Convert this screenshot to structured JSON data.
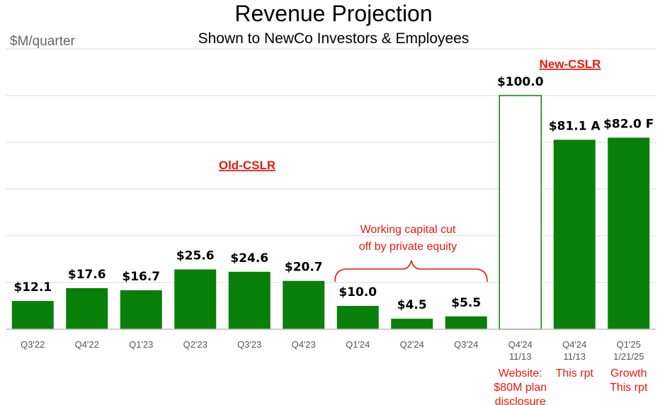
{
  "chart_data": {
    "type": "bar",
    "title": "Revenue Projection",
    "subtitle": "Shown to NewCo Investors & Employees",
    "ylabel": "$M/quarter",
    "ylim": [
      0,
      125
    ],
    "grid": true,
    "bar_color": "#098009",
    "forecast_outline_color": "#098009",
    "bars": [
      {
        "category": "Q3'22",
        "sub": "",
        "value": 12.1,
        "label": "$12.1",
        "style": "solid"
      },
      {
        "category": "Q4'22",
        "sub": "",
        "value": 17.6,
        "label": "$17.6",
        "style": "solid"
      },
      {
        "category": "Q1'23",
        "sub": "",
        "value": 16.7,
        "label": "$16.7",
        "style": "solid"
      },
      {
        "category": "Q2'23",
        "sub": "",
        "value": 25.6,
        "label": "$25.6",
        "style": "solid"
      },
      {
        "category": "Q3'23",
        "sub": "",
        "value": 24.6,
        "label": "$24.6",
        "style": "solid"
      },
      {
        "category": "Q4'23",
        "sub": "",
        "value": 20.7,
        "label": "$20.7",
        "style": "solid"
      },
      {
        "category": "Q1'24",
        "sub": "",
        "value": 10.0,
        "label": "$10.0",
        "style": "solid"
      },
      {
        "category": "Q2'24",
        "sub": "",
        "value": 4.5,
        "label": "$4.5",
        "style": "solid"
      },
      {
        "category": "Q3'24",
        "sub": "",
        "value": 5.5,
        "label": "$5.5",
        "style": "solid"
      },
      {
        "category": "Q4'24",
        "sub": "11/13",
        "value": 100.0,
        "label": "$100.0",
        "style": "outline"
      },
      {
        "category": "Q4'24",
        "sub": "11/13",
        "value": 81.1,
        "label": "$81.1 A",
        "style": "solid"
      },
      {
        "category": "Q1'25",
        "sub": "1/21/25",
        "value": 82.0,
        "label": "$82.0 F",
        "style": "solid"
      }
    ],
    "annotations": {
      "old_cslr": "Old-CSLR",
      "new_cslr": "New-CSLR",
      "working_capital_line1": "Working capital cut",
      "working_capital_line2": "off by private equity",
      "notes": [
        {
          "bar_index": 9,
          "lines": [
            "Website:",
            "$80M plan",
            "disclosure"
          ]
        },
        {
          "bar_index": 10,
          "lines": [
            "This rpt"
          ]
        },
        {
          "bar_index": 11,
          "lines": [
            "Growth",
            "This rpt"
          ]
        }
      ]
    }
  }
}
